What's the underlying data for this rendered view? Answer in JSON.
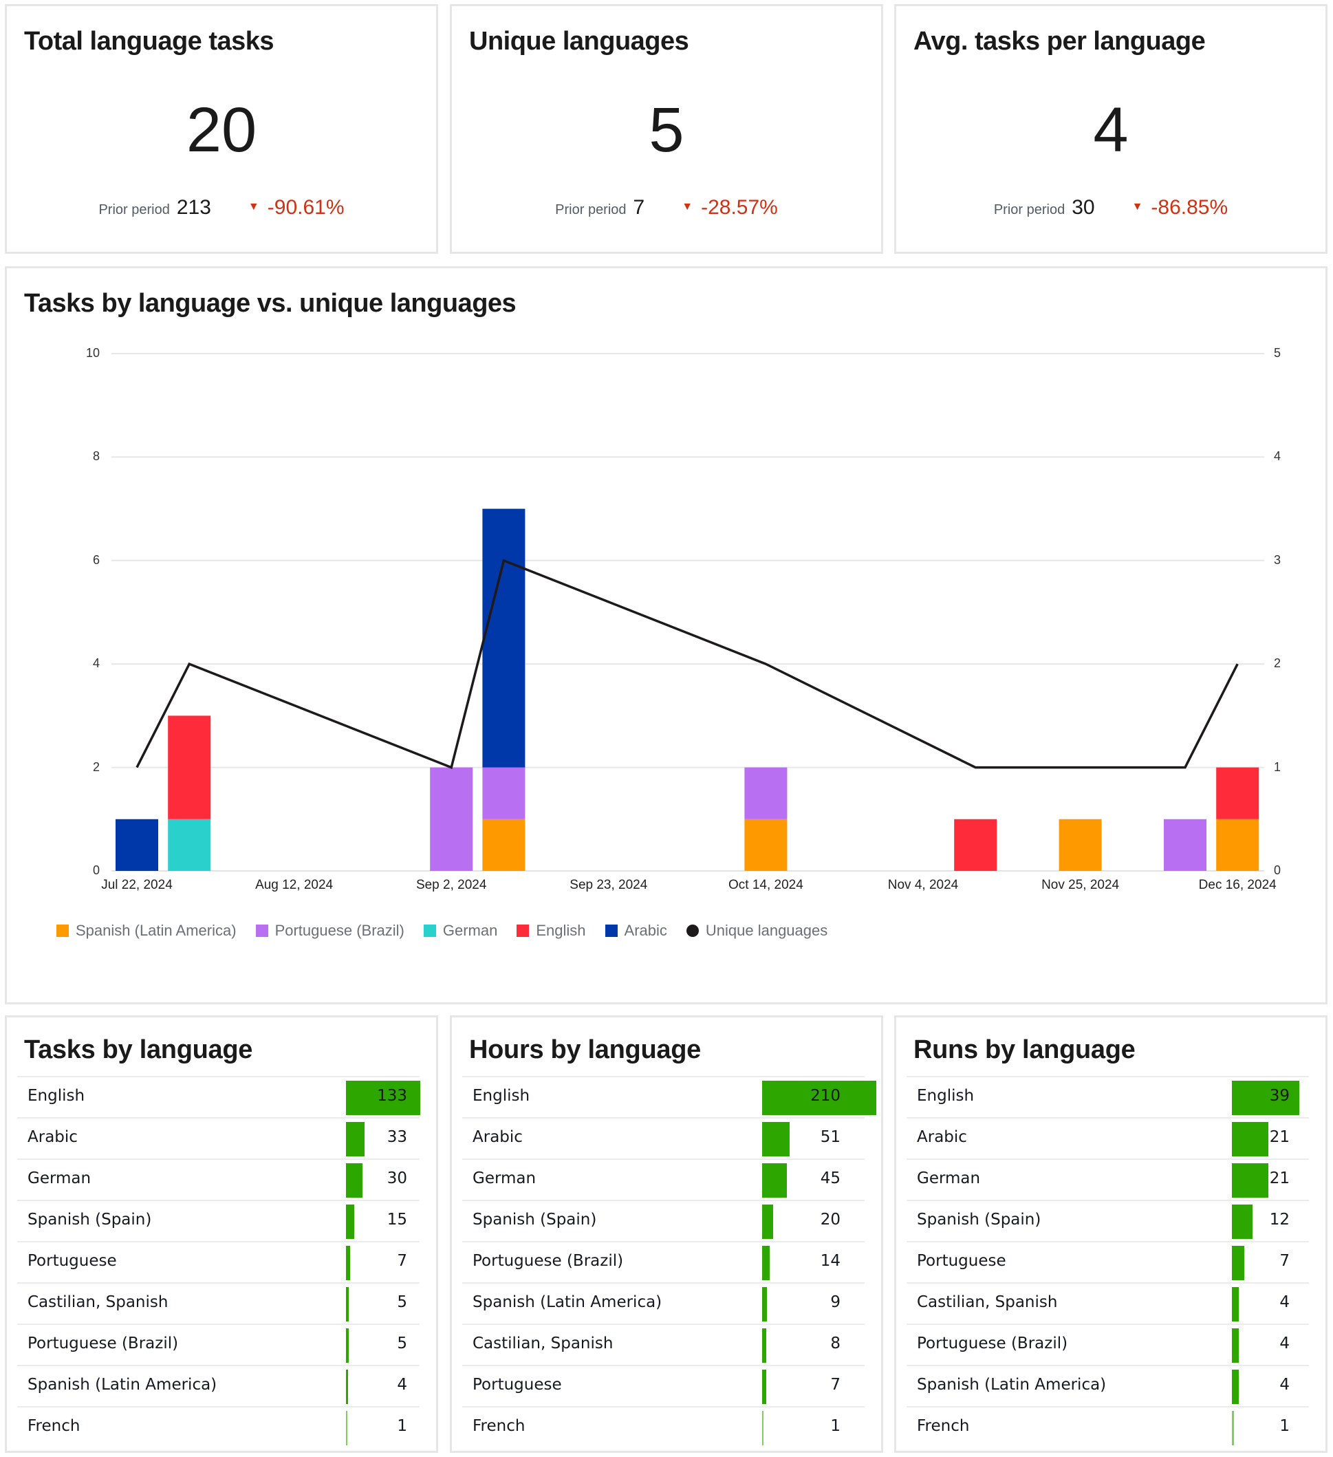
{
  "kpis": [
    {
      "title": "Total language tasks",
      "value": "20",
      "prior_label": "Prior period",
      "prior_value": "213",
      "delta": "-90.61%",
      "direction": "down"
    },
    {
      "title": "Unique languages",
      "value": "5",
      "prior_label": "Prior period",
      "prior_value": "7",
      "delta": "-28.57%",
      "direction": "down"
    },
    {
      "title": "Avg. tasks per language",
      "value": "4",
      "prior_label": "Prior period",
      "prior_value": "30",
      "delta": "-86.85%",
      "direction": "down"
    }
  ],
  "combo_chart": {
    "title": "Tasks by language vs. unique languages",
    "left_ticks": [
      "10",
      "8",
      "6",
      "4",
      "2",
      "0"
    ],
    "right_ticks": [
      "5",
      "4",
      "3",
      "2",
      "1",
      "0"
    ],
    "x_ticks": [
      "Jul 22, 2024",
      "Aug 12, 2024",
      "Sep 2, 2024",
      "Sep 23, 2024",
      "Oct 14, 2024",
      "Nov 4, 2024",
      "Nov 25, 2024",
      "Dec 16, 2024"
    ],
    "legend": [
      {
        "label": "Spanish (Latin America)",
        "color": "#ff9900"
      },
      {
        "label": "Portuguese (Brazil)",
        "color": "#b86ff2"
      },
      {
        "label": "German",
        "color": "#29d0cc"
      },
      {
        "label": "English",
        "color": "#fe2b3a"
      },
      {
        "label": "Arabic",
        "color": "#0037a9"
      },
      {
        "label": "Unique languages",
        "color": "#1d1a1b",
        "shape": "circle"
      }
    ]
  },
  "chart_data": [
    {
      "type": "bar",
      "stacked": true,
      "title": "Tasks by language vs. unique languages",
      "x": [
        "Jul 22, 2024",
        "Jul 29, 2024",
        "Sep 2, 2024",
        "Sep 9, 2024",
        "Oct 14, 2024",
        "Nov 11, 2024",
        "Nov 25, 2024",
        "Dec 9, 2024",
        "Dec 16, 2024"
      ],
      "series": [
        {
          "name": "Spanish (Latin America)",
          "axis": "left",
          "values": [
            0,
            0,
            0,
            1,
            1,
            0,
            1,
            0,
            1
          ]
        },
        {
          "name": "Portuguese (Brazil)",
          "axis": "left",
          "values": [
            0,
            0,
            2,
            1,
            1,
            0,
            0,
            1,
            0
          ]
        },
        {
          "name": "German",
          "axis": "left",
          "values": [
            0,
            1,
            0,
            0,
            0,
            0,
            0,
            0,
            0
          ]
        },
        {
          "name": "English",
          "axis": "left",
          "values": [
            0,
            2,
            0,
            0,
            0,
            1,
            0,
            0,
            1
          ]
        },
        {
          "name": "Arabic",
          "axis": "left",
          "values": [
            1,
            0,
            0,
            5,
            0,
            0,
            0,
            0,
            0
          ]
        }
      ],
      "line_series": {
        "name": "Unique languages",
        "axis": "right",
        "type": "line",
        "x": [
          "Jul 22, 2024",
          "Jul 29, 2024",
          "Sep 2, 2024",
          "Sep 9, 2024",
          "Oct 14, 2024",
          "Nov 11, 2024",
          "Dec 9, 2024",
          "Dec 16, 2024"
        ],
        "values": [
          1,
          2,
          1,
          3,
          2,
          1,
          1,
          2
        ]
      },
      "xlabel": "",
      "ylabel": "",
      "ylim_left": [
        0,
        10
      ],
      "ylim_right": [
        0,
        5
      ],
      "x_tick_labels": [
        "Jul 22, 2024",
        "Aug 12, 2024",
        "Sep 2, 2024",
        "Sep 23, 2024",
        "Oct 14, 2024",
        "Nov 4, 2024",
        "Nov 25, 2024",
        "Dec 16, 2024"
      ],
      "grid": true,
      "legend_position": "bottom"
    },
    {
      "type": "table",
      "title": "Tasks by language",
      "categories": [
        "English",
        "Arabic",
        "German",
        "Spanish (Spain)",
        "Portuguese",
        "Castilian, Spanish",
        "Portuguese (Brazil)",
        "Spanish (Latin America)",
        "French"
      ],
      "values": [
        133,
        33,
        30,
        15,
        7,
        5,
        5,
        4,
        1
      ]
    },
    {
      "type": "table",
      "title": "Hours by language",
      "categories": [
        "English",
        "Arabic",
        "German",
        "Spanish (Spain)",
        "Portuguese (Brazil)",
        "Spanish (Latin America)",
        "Castilian, Spanish",
        "Portuguese",
        "French"
      ],
      "values": [
        210,
        51,
        45,
        20,
        14,
        9,
        8,
        7,
        1
      ]
    },
    {
      "type": "table",
      "title": "Runs by language",
      "categories": [
        "English",
        "Arabic",
        "German",
        "Spanish (Spain)",
        "Portuguese",
        "Castilian, Spanish",
        "Portuguese (Brazil)",
        "Spanish (Latin America)",
        "French"
      ],
      "values": [
        39,
        21,
        21,
        12,
        7,
        4,
        4,
        4,
        1
      ]
    }
  ],
  "tables": [
    {
      "title": "Tasks by language",
      "rows": [
        {
          "label": "English",
          "value": "133"
        },
        {
          "label": "Arabic",
          "value": "33"
        },
        {
          "label": "German",
          "value": "30"
        },
        {
          "label": "Spanish (Spain)",
          "value": "15"
        },
        {
          "label": "Portuguese",
          "value": "7"
        },
        {
          "label": "Castilian, Spanish",
          "value": "5"
        },
        {
          "label": "Portuguese (Brazil)",
          "value": "5"
        },
        {
          "label": "Spanish (Latin America)",
          "value": "4"
        },
        {
          "label": "French",
          "value": "1"
        }
      ]
    },
    {
      "title": "Hours by language",
      "rows": [
        {
          "label": "English",
          "value": "210"
        },
        {
          "label": "Arabic",
          "value": "51"
        },
        {
          "label": "German",
          "value": "45"
        },
        {
          "label": "Spanish (Spain)",
          "value": "20"
        },
        {
          "label": "Portuguese (Brazil)",
          "value": "14"
        },
        {
          "label": "Spanish (Latin America)",
          "value": "9"
        },
        {
          "label": "Castilian, Spanish",
          "value": "8"
        },
        {
          "label": "Portuguese",
          "value": "7"
        },
        {
          "label": "French",
          "value": "1"
        }
      ]
    },
    {
      "title": "Runs by language",
      "rows": [
        {
          "label": "English",
          "value": "39"
        },
        {
          "label": "Arabic",
          "value": "21"
        },
        {
          "label": "German",
          "value": "21"
        },
        {
          "label": "Spanish (Spain)",
          "value": "12"
        },
        {
          "label": "Portuguese",
          "value": "7"
        },
        {
          "label": "Castilian, Spanish",
          "value": "4"
        },
        {
          "label": "Portuguese (Brazil)",
          "value": "4"
        },
        {
          "label": "Spanish (Latin America)",
          "value": "4"
        },
        {
          "label": "French",
          "value": "1"
        }
      ]
    }
  ],
  "colors": {
    "bar_fill": "#2ea600",
    "negative_delta": "#d13212",
    "grid": "#e6e6e6"
  }
}
